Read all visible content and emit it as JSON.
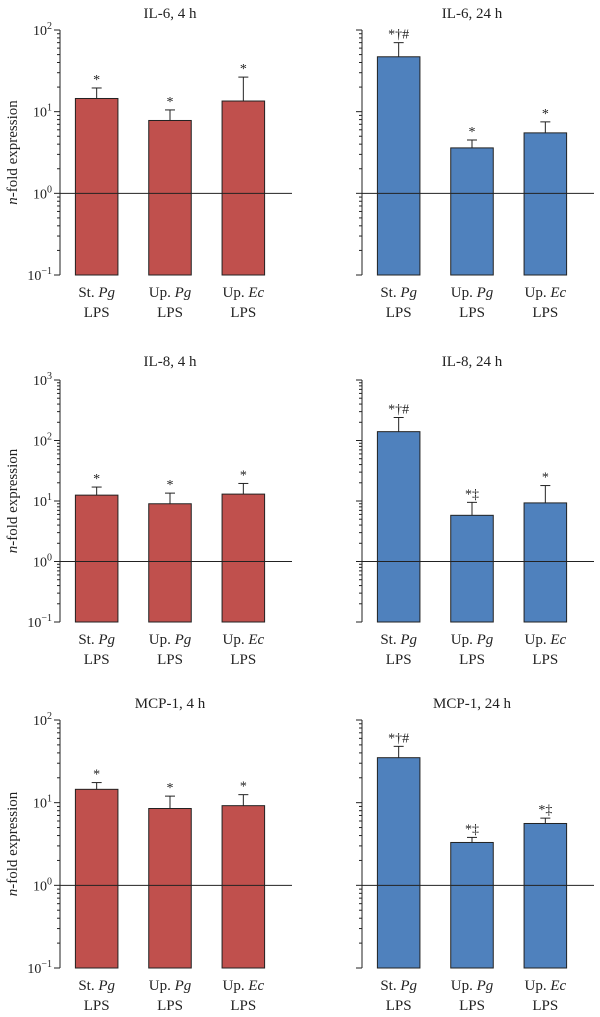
{
  "chart_data": [
    {
      "type": "bar",
      "title": "IL-6, 4 h",
      "ylabel": "n-fold expression",
      "yscale": "log",
      "ylim": [
        0.1,
        100
      ],
      "yticks": [
        {
          "base": "10",
          "exp": "−1"
        },
        {
          "base": "10",
          "exp": "0"
        },
        {
          "base": "10",
          "exp": "1"
        },
        {
          "base": "10",
          "exp": "2"
        }
      ],
      "categories": [
        {
          "line1": "St. ",
          "italic": "Pg",
          "line2": "LPS"
        },
        {
          "line1": "Up. ",
          "italic": "Pg",
          "line2": "LPS"
        },
        {
          "line1": "Up. ",
          "italic": "Ec",
          "line2": "LPS"
        }
      ],
      "values": [
        14.5,
        7.8,
        13.5
      ],
      "errors": [
        19.5,
        10.5,
        26.5
      ],
      "annotations": [
        "*",
        "*",
        "*"
      ],
      "color": "#c0504d",
      "reference_line": 1
    },
    {
      "type": "bar",
      "title": "IL-6, 24 h",
      "ylabel": "",
      "yscale": "log",
      "ylim": [
        0.1,
        100
      ],
      "yticks": [],
      "categories": [
        {
          "line1": "St. ",
          "italic": "Pg",
          "line2": "LPS"
        },
        {
          "line1": "Up. ",
          "italic": "Pg",
          "line2": "LPS"
        },
        {
          "line1": "Up. ",
          "italic": "Ec",
          "line2": "LPS"
        }
      ],
      "values": [
        47,
        3.6,
        5.5
      ],
      "errors": [
        70,
        4.5,
        7.5
      ],
      "annotations": [
        "*†#",
        "*",
        "*"
      ],
      "color": "#4f81bd",
      "reference_line": 1
    },
    {
      "type": "bar",
      "title": "IL-8, 4 h",
      "ylabel": "n-fold expression",
      "yscale": "log",
      "ylim": [
        0.1,
        1000
      ],
      "yticks": [
        {
          "base": "10",
          "exp": "−1"
        },
        {
          "base": "10",
          "exp": "0"
        },
        {
          "base": "10",
          "exp": "1"
        },
        {
          "base": "10",
          "exp": "2"
        },
        {
          "base": "10",
          "exp": "3"
        }
      ],
      "categories": [
        {
          "line1": "St. ",
          "italic": "Pg",
          "line2": "LPS"
        },
        {
          "line1": "Up. ",
          "italic": "Pg",
          "line2": "LPS"
        },
        {
          "line1": "Up. ",
          "italic": "Ec",
          "line2": "LPS"
        }
      ],
      "values": [
        12.5,
        9,
        13
      ],
      "errors": [
        17,
        13.5,
        19.5
      ],
      "annotations": [
        "*",
        "*",
        "*"
      ],
      "color": "#c0504d",
      "reference_line": 1
    },
    {
      "type": "bar",
      "title": "IL-8, 24 h",
      "ylabel": "",
      "yscale": "log",
      "ylim": [
        0.1,
        1000
      ],
      "yticks": [],
      "categories": [
        {
          "line1": "St. ",
          "italic": "Pg",
          "line2": "LPS"
        },
        {
          "line1": "Up. ",
          "italic": "Pg",
          "line2": "LPS"
        },
        {
          "line1": "Up. ",
          "italic": "Ec",
          "line2": "LPS"
        }
      ],
      "values": [
        140,
        5.8,
        9.3
      ],
      "errors": [
        240,
        9.5,
        18
      ],
      "annotations": [
        "*†#",
        "*‡",
        "*"
      ],
      "color": "#4f81bd",
      "reference_line": 1
    },
    {
      "type": "bar",
      "title": "MCP-1, 4 h",
      "ylabel": "n-fold expression",
      "yscale": "log",
      "ylim": [
        0.1,
        100
      ],
      "yticks": [
        {
          "base": "10",
          "exp": "−1"
        },
        {
          "base": "10",
          "exp": "0"
        },
        {
          "base": "10",
          "exp": "1"
        },
        {
          "base": "10",
          "exp": "2"
        }
      ],
      "categories": [
        {
          "line1": "St. ",
          "italic": "Pg",
          "line2": "LPS"
        },
        {
          "line1": "Up. ",
          "italic": "Pg",
          "line2": "LPS"
        },
        {
          "line1": "Up. ",
          "italic": "Ec",
          "line2": "LPS"
        }
      ],
      "values": [
        14.5,
        8.5,
        9.2
      ],
      "errors": [
        17.5,
        12,
        12.5
      ],
      "annotations": [
        "*",
        "*",
        "*"
      ],
      "color": "#c0504d",
      "reference_line": 1
    },
    {
      "type": "bar",
      "title": "MCP-1, 24 h",
      "ylabel": "",
      "yscale": "log",
      "ylim": [
        0.1,
        100
      ],
      "yticks": [],
      "categories": [
        {
          "line1": "St. ",
          "italic": "Pg",
          "line2": "LPS"
        },
        {
          "line1": "Up. ",
          "italic": "Pg",
          "line2": "LPS"
        },
        {
          "line1": "Up. ",
          "italic": "Ec",
          "line2": "LPS"
        }
      ],
      "values": [
        35,
        3.3,
        5.6
      ],
      "errors": [
        48,
        3.8,
        6.5
      ],
      "annotations": [
        "*†#",
        "*‡",
        "*‡"
      ],
      "color": "#4f81bd",
      "reference_line": 1
    }
  ]
}
